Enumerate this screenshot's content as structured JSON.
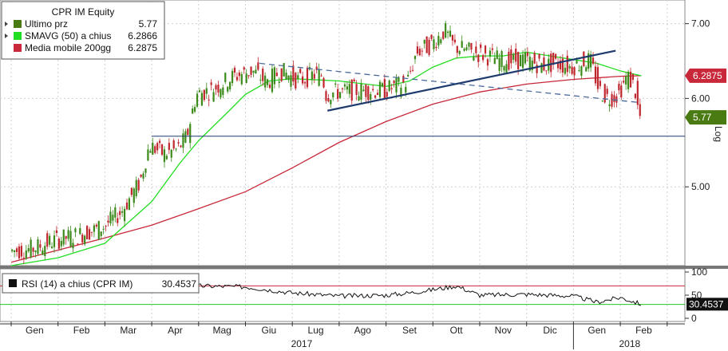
{
  "chart_data": {
    "type": "candlestick",
    "title": "CPR IM Equity",
    "legend": [
      {
        "label": "Ultimo prz",
        "value": "5.77",
        "color": "#4a7a12"
      },
      {
        "label": "SMAVG (50) a chius",
        "value": "6.2866",
        "color": "#22dd22"
      },
      {
        "label": "Media mobile 200gg",
        "value": "6.2875",
        "color": "#c8283a"
      }
    ],
    "y_axis": {
      "scale": "log",
      "range": [
        4.25,
        7.35
      ],
      "ticks": [
        "7.00",
        "6.00",
        "5.00"
      ],
      "side_label": "Log"
    },
    "price_tags": [
      {
        "value": 6.2875,
        "text": "6.2875",
        "color": "#c8283a",
        "text_color": "#ffffff"
      },
      {
        "value": 5.77,
        "text": "5.77",
        "color": "#4a7a12",
        "text_color": "#ffffff"
      }
    ],
    "x_axis": {
      "months": [
        "Gen",
        "Feb",
        "Mar",
        "Apr",
        "Mag",
        "Giu",
        "Lug",
        "Ago",
        "Set",
        "Ott",
        "Nov",
        "Dic",
        "Gen",
        "Feb"
      ],
      "years": [
        "2017",
        "2018"
      ]
    },
    "price_path": [
      [
        0,
        4.38
      ],
      [
        0.5,
        4.4
      ],
      [
        1.0,
        4.48
      ],
      [
        1.5,
        4.53
      ],
      [
        2.0,
        4.6
      ],
      [
        2.4,
        4.75
      ],
      [
        2.8,
        5.05
      ],
      [
        3.0,
        5.45
      ],
      [
        3.3,
        5.35
      ],
      [
        3.6,
        5.4
      ],
      [
        3.8,
        5.55
      ],
      [
        4.0,
        6.05
      ],
      [
        4.3,
        6.1
      ],
      [
        4.8,
        6.28
      ],
      [
        5.2,
        6.35
      ],
      [
        5.5,
        6.2
      ],
      [
        5.8,
        6.35
      ],
      [
        6.2,
        6.22
      ],
      [
        6.5,
        6.3
      ],
      [
        6.7,
        6.3
      ],
      [
        6.75,
        6.05
      ],
      [
        7.0,
        6.08
      ],
      [
        7.5,
        6.1
      ],
      [
        8.0,
        6.1
      ],
      [
        8.5,
        6.2
      ],
      [
        8.7,
        6.6
      ],
      [
        9.0,
        6.7
      ],
      [
        9.3,
        6.9
      ],
      [
        9.5,
        6.68
      ],
      [
        9.8,
        6.62
      ],
      [
        10.2,
        6.55
      ],
      [
        10.6,
        6.48
      ],
      [
        11.0,
        6.5
      ],
      [
        11.4,
        6.42
      ],
      [
        11.7,
        6.45
      ],
      [
        12.0,
        6.4
      ],
      [
        12.4,
        6.5
      ],
      [
        12.6,
        6.1
      ],
      [
        12.8,
        6.0
      ],
      [
        13.0,
        6.05
      ],
      [
        13.2,
        6.28
      ],
      [
        13.35,
        6.15
      ],
      [
        13.45,
        5.77
      ]
    ],
    "sma50_path": [
      [
        0,
        4.25
      ],
      [
        1.0,
        4.32
      ],
      [
        2.0,
        4.45
      ],
      [
        3.0,
        4.85
      ],
      [
        3.6,
        5.25
      ],
      [
        4.0,
        5.5
      ],
      [
        4.6,
        5.82
      ],
      [
        5.0,
        6.05
      ],
      [
        5.5,
        6.22
      ],
      [
        6.0,
        6.25
      ],
      [
        7.0,
        6.22
      ],
      [
        8.0,
        6.15
      ],
      [
        8.5,
        6.22
      ],
      [
        9.0,
        6.4
      ],
      [
        9.5,
        6.52
      ],
      [
        10.0,
        6.55
      ],
      [
        10.5,
        6.55
      ],
      [
        11.0,
        6.6
      ],
      [
        11.5,
        6.55
      ],
      [
        12.0,
        6.5
      ],
      [
        12.5,
        6.45
      ],
      [
        13.0,
        6.35
      ],
      [
        13.45,
        6.2866
      ]
    ],
    "ma200_path": [
      [
        0,
        4.28
      ],
      [
        2.0,
        4.5
      ],
      [
        3.0,
        4.62
      ],
      [
        4.0,
        4.78
      ],
      [
        5.0,
        4.95
      ],
      [
        6.0,
        5.2
      ],
      [
        7.0,
        5.48
      ],
      [
        8.0,
        5.72
      ],
      [
        9.0,
        5.93
      ],
      [
        10.0,
        6.08
      ],
      [
        11.0,
        6.18
      ],
      [
        12.0,
        6.24
      ],
      [
        13.0,
        6.28
      ],
      [
        13.45,
        6.2875
      ]
    ],
    "trendlines": [
      {
        "name": "ascending",
        "style": "solid",
        "color": "#1f3b6e",
        "from": [
          6.75,
          5.85
        ],
        "to": [
          12.9,
          6.62
        ]
      },
      {
        "name": "descending",
        "style": "dashed",
        "color": "#4a6a9a",
        "from": [
          5.3,
          6.45
        ],
        "to": [
          13.4,
          5.95
        ]
      }
    ],
    "support_line": {
      "value": 5.55,
      "from_x": 3.0,
      "color": "#1f3b6e"
    },
    "rsi": {
      "label": "RSI (14) a chius (CPR IM)",
      "value": "30.4537",
      "range": [
        0,
        100
      ],
      "ticks": [
        "100",
        "50",
        "0"
      ],
      "overbought": 70,
      "oversold": 30,
      "path": [
        [
          0,
          70
        ],
        [
          1,
          73
        ],
        [
          2,
          75
        ],
        [
          3,
          78
        ],
        [
          4,
          70
        ],
        [
          5,
          68
        ],
        [
          6,
          55
        ],
        [
          7,
          48
        ],
        [
          8,
          50
        ],
        [
          8.5,
          55
        ],
        [
          9,
          62
        ],
        [
          9.5,
          70
        ],
        [
          10,
          50
        ],
        [
          11,
          52
        ],
        [
          12,
          48
        ],
        [
          12.5,
          35
        ],
        [
          13,
          45
        ],
        [
          13.45,
          30.4537
        ]
      ]
    }
  }
}
